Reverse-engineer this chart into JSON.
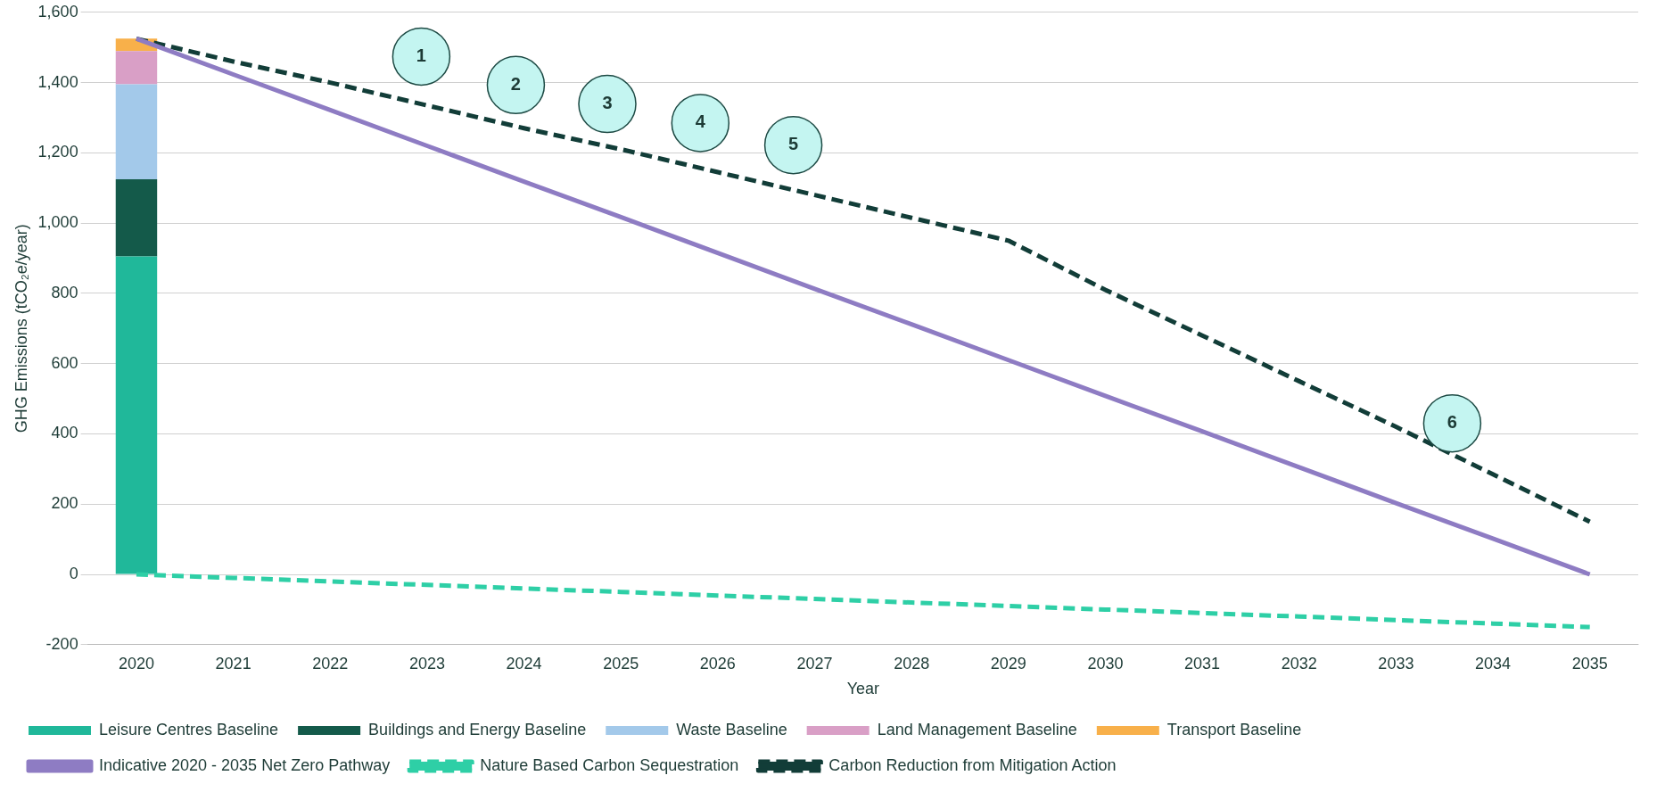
{
  "chart_data": {
    "type": "bar",
    "stacked": true,
    "xlabel": "Year",
    "ylabel": "GHG Emissions (tCO₂e/year)",
    "categories": [
      "2020",
      "2021",
      "2022",
      "2023",
      "2024",
      "2025",
      "2026",
      "2027",
      "2028",
      "2029",
      "2030",
      "2031",
      "2032",
      "2033",
      "2034",
      "2035"
    ],
    "ylim": [
      -200,
      1600
    ],
    "yticks": [
      {
        "value": -200,
        "label": "-200"
      },
      0,
      200,
      400,
      600,
      800,
      {
        "value": 1000,
        "label": "1,000"
      },
      {
        "value": 1200,
        "label": "1,200"
      },
      {
        "value": 1400,
        "label": "1,400"
      },
      {
        "value": 1600,
        "label": "1,600"
      }
    ],
    "grid": "y",
    "legend": "bottom",
    "series": [
      {
        "name": "Leisure Centres Baseline",
        "color": "#20b89a",
        "values": [
          905,
          null,
          null,
          null,
          null,
          null,
          null,
          null,
          null,
          null,
          null,
          null,
          null,
          null,
          null,
          null
        ]
      },
      {
        "name": "Buildings and Energy Baseline",
        "color": "#145a4a",
        "values": [
          220,
          null,
          null,
          null,
          null,
          null,
          null,
          null,
          null,
          null,
          null,
          null,
          null,
          null,
          null,
          null
        ]
      },
      {
        "name": "Waste Baseline",
        "color": "#a3c9ea",
        "values": [
          270,
          null,
          null,
          null,
          null,
          null,
          null,
          null,
          null,
          null,
          null,
          null,
          null,
          null,
          null,
          null
        ]
      },
      {
        "name": "Land Management Baseline",
        "color": "#d99fc6",
        "values": [
          95,
          null,
          null,
          null,
          null,
          null,
          null,
          null,
          null,
          null,
          null,
          null,
          null,
          null,
          null,
          null
        ]
      },
      {
        "name": "Transport Baseline",
        "color": "#f8b04a",
        "values": [
          35,
          null,
          null,
          null,
          null,
          null,
          null,
          null,
          null,
          null,
          null,
          null,
          null,
          null,
          null,
          null
        ]
      },
      {
        "name": "Indicative 2020 - 2035 Net Zero Pathway",
        "type": "line",
        "line_style": "solid",
        "color": "#8e7cc3",
        "values": [
          1525,
          1423,
          1322,
          1220,
          1118,
          1017,
          915,
          813,
          712,
          610,
          508,
          407,
          305,
          203,
          102,
          0
        ]
      },
      {
        "name": "Nature Based Carbon Sequestration",
        "type": "line",
        "line_style": "dashed",
        "color": "#2ecfa6",
        "values": [
          0,
          -10,
          -20,
          -30,
          -40,
          -50,
          -60,
          -70,
          -80,
          -90,
          -100,
          -110,
          -120,
          -130,
          -140,
          -150
        ]
      },
      {
        "name": "Carbon Reduction from Mitigation Action",
        "type": "line",
        "line_style": "dashed",
        "color": "#123d38",
        "values": [
          1525,
          1460,
          1400,
          1335,
          1270,
          1210,
          1145,
          1080,
          1015,
          950,
          810,
          680,
          550,
          420,
          285,
          150
        ]
      }
    ],
    "annotations": [
      "1",
      "2",
      "3",
      "4",
      "5",
      "6"
    ]
  }
}
